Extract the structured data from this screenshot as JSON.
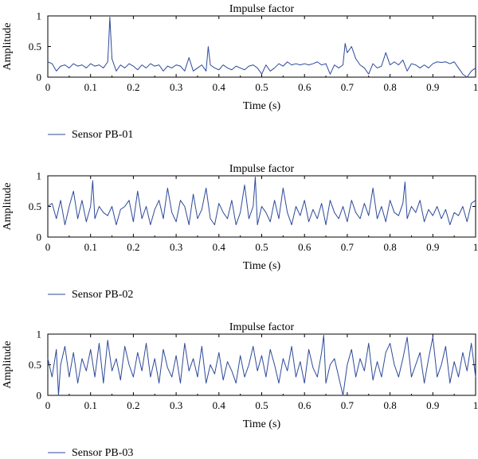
{
  "colors": {
    "line": "#2e4a9a",
    "axis": "#000000",
    "background": "#ffffff"
  },
  "chart_data": [
    {
      "type": "line",
      "title": "Impulse factor",
      "xlabel": "Time (s)",
      "ylabel": "Amplitude",
      "xlim": [
        0,
        1
      ],
      "ylim": [
        0,
        1
      ],
      "xticks": [
        "0",
        "0.1",
        "0.2",
        "0.3",
        "0.4",
        "0.5",
        "0.6",
        "0.7",
        "0.8",
        "0.9",
        "1"
      ],
      "yticks": [
        "0",
        "0.5",
        "1"
      ],
      "grid": false,
      "legend": "bottom-left",
      "series": [
        {
          "name": "Sensor PB-01",
          "x": [
            0,
            0.01,
            0.02,
            0.03,
            0.04,
            0.05,
            0.06,
            0.07,
            0.08,
            0.09,
            0.1,
            0.11,
            0.12,
            0.13,
            0.14,
            0.142,
            0.145,
            0.15,
            0.16,
            0.17,
            0.18,
            0.19,
            0.2,
            0.21,
            0.22,
            0.23,
            0.24,
            0.25,
            0.26,
            0.27,
            0.28,
            0.29,
            0.3,
            0.31,
            0.32,
            0.33,
            0.34,
            0.35,
            0.36,
            0.37,
            0.375,
            0.38,
            0.39,
            0.4,
            0.41,
            0.42,
            0.43,
            0.44,
            0.45,
            0.46,
            0.47,
            0.48,
            0.49,
            0.5,
            0.51,
            0.52,
            0.53,
            0.54,
            0.55,
            0.56,
            0.57,
            0.58,
            0.59,
            0.6,
            0.61,
            0.62,
            0.63,
            0.64,
            0.65,
            0.66,
            0.67,
            0.68,
            0.69,
            0.695,
            0.7,
            0.71,
            0.72,
            0.73,
            0.74,
            0.75,
            0.76,
            0.77,
            0.78,
            0.79,
            0.8,
            0.81,
            0.82,
            0.83,
            0.84,
            0.85,
            0.86,
            0.87,
            0.88,
            0.89,
            0.9,
            0.91,
            0.92,
            0.93,
            0.94,
            0.95,
            0.96,
            0.97,
            0.98,
            0.99,
            1
          ],
          "y": [
            0.25,
            0.22,
            0.1,
            0.18,
            0.2,
            0.15,
            0.22,
            0.18,
            0.2,
            0.15,
            0.22,
            0.18,
            0.2,
            0.15,
            0.25,
            0.5,
            0.98,
            0.3,
            0.1,
            0.2,
            0.15,
            0.22,
            0.18,
            0.12,
            0.2,
            0.15,
            0.22,
            0.18,
            0.2,
            0.1,
            0.18,
            0.15,
            0.2,
            0.18,
            0.1,
            0.32,
            0.1,
            0.15,
            0.2,
            0.1,
            0.5,
            0.2,
            0.15,
            0.12,
            0.2,
            0.15,
            0.12,
            0.18,
            0.15,
            0.12,
            0.18,
            0.2,
            0.15,
            0.05,
            0.2,
            0.1,
            0.15,
            0.22,
            0.18,
            0.25,
            0.2,
            0.22,
            0.2,
            0.22,
            0.2,
            0.22,
            0.25,
            0.2,
            0.22,
            0.05,
            0.2,
            0.15,
            0.2,
            0.55,
            0.4,
            0.5,
            0.3,
            0.2,
            0.15,
            0.05,
            0.22,
            0.15,
            0.18,
            0.4,
            0.2,
            0.25,
            0.2,
            0.28,
            0.1,
            0.22,
            0.2,
            0.15,
            0.2,
            0.15,
            0.22,
            0.25,
            0.24,
            0.25,
            0.22,
            0.25,
            0.15,
            0.05,
            0.0,
            0.1,
            0.15
          ]
        }
      ]
    },
    {
      "type": "line",
      "title": "Impulse factor",
      "xlabel": "Time (s)",
      "ylabel": "Amplitude",
      "xlim": [
        0,
        1
      ],
      "ylim": [
        0,
        1
      ],
      "xticks": [
        "0",
        "0.1",
        "0.2",
        "0.3",
        "0.4",
        "0.5",
        "0.6",
        "0.7",
        "0.8",
        "0.9",
        "1"
      ],
      "yticks": [
        "0",
        "0.5",
        "1"
      ],
      "grid": false,
      "legend": "bottom-left",
      "series": [
        {
          "name": "Sensor PB-02",
          "x": [
            0,
            0.01,
            0.02,
            0.03,
            0.04,
            0.05,
            0.06,
            0.07,
            0.08,
            0.09,
            0.1,
            0.105,
            0.11,
            0.12,
            0.13,
            0.14,
            0.15,
            0.16,
            0.17,
            0.18,
            0.19,
            0.2,
            0.21,
            0.22,
            0.23,
            0.24,
            0.25,
            0.26,
            0.27,
            0.28,
            0.29,
            0.3,
            0.31,
            0.32,
            0.33,
            0.34,
            0.35,
            0.36,
            0.37,
            0.38,
            0.39,
            0.4,
            0.41,
            0.42,
            0.43,
            0.44,
            0.45,
            0.46,
            0.47,
            0.48,
            0.485,
            0.49,
            0.5,
            0.51,
            0.52,
            0.53,
            0.54,
            0.55,
            0.56,
            0.57,
            0.58,
            0.59,
            0.6,
            0.61,
            0.62,
            0.63,
            0.64,
            0.65,
            0.66,
            0.67,
            0.68,
            0.69,
            0.7,
            0.71,
            0.72,
            0.73,
            0.74,
            0.75,
            0.76,
            0.77,
            0.78,
            0.79,
            0.8,
            0.81,
            0.82,
            0.83,
            0.835,
            0.84,
            0.85,
            0.86,
            0.87,
            0.88,
            0.89,
            0.9,
            0.91,
            0.92,
            0.93,
            0.94,
            0.95,
            0.96,
            0.97,
            0.98,
            0.99,
            1
          ],
          "y": [
            0.5,
            0.55,
            0.3,
            0.6,
            0.2,
            0.5,
            0.75,
            0.3,
            0.6,
            0.25,
            0.5,
            0.92,
            0.3,
            0.5,
            0.4,
            0.35,
            0.5,
            0.2,
            0.45,
            0.5,
            0.6,
            0.25,
            0.75,
            0.3,
            0.5,
            0.2,
            0.45,
            0.6,
            0.3,
            0.8,
            0.4,
            0.25,
            0.6,
            0.5,
            0.2,
            0.7,
            0.3,
            0.45,
            0.8,
            0.3,
            0.2,
            0.55,
            0.4,
            0.3,
            0.6,
            0.2,
            0.4,
            0.85,
            0.3,
            0.5,
            0.98,
            0.2,
            0.5,
            0.4,
            0.25,
            0.6,
            0.3,
            0.8,
            0.4,
            0.2,
            0.5,
            0.35,
            0.6,
            0.25,
            0.45,
            0.3,
            0.55,
            0.2,
            0.6,
            0.4,
            0.3,
            0.5,
            0.25,
            0.6,
            0.4,
            0.3,
            0.55,
            0.35,
            0.8,
            0.3,
            0.5,
            0.25,
            0.6,
            0.4,
            0.35,
            0.55,
            0.9,
            0.3,
            0.5,
            0.4,
            0.6,
            0.25,
            0.45,
            0.35,
            0.5,
            0.3,
            0.45,
            0.2,
            0.4,
            0.35,
            0.5,
            0.25,
            0.55,
            0.6
          ]
        }
      ]
    },
    {
      "type": "line",
      "title": "Impulse factor",
      "xlabel": "Time (s)",
      "ylabel": "Amplitude",
      "xlim": [
        0,
        1
      ],
      "ylim": [
        0,
        1
      ],
      "xticks": [
        "0",
        "0.1",
        "0.2",
        "0.3",
        "0.4",
        "0.5",
        "0.6",
        "0.7",
        "0.8",
        "0.9",
        "1"
      ],
      "yticks": [
        "0",
        "0.5",
        "1"
      ],
      "grid": false,
      "legend": "bottom-left",
      "series": [
        {
          "name": "Sensor PB-03",
          "x": [
            0,
            0.01,
            0.02,
            0.025,
            0.03,
            0.04,
            0.05,
            0.06,
            0.07,
            0.08,
            0.09,
            0.1,
            0.11,
            0.12,
            0.13,
            0.14,
            0.15,
            0.16,
            0.17,
            0.18,
            0.19,
            0.2,
            0.21,
            0.22,
            0.23,
            0.24,
            0.25,
            0.26,
            0.27,
            0.28,
            0.29,
            0.3,
            0.31,
            0.32,
            0.33,
            0.34,
            0.35,
            0.36,
            0.37,
            0.38,
            0.39,
            0.4,
            0.41,
            0.42,
            0.43,
            0.44,
            0.45,
            0.46,
            0.47,
            0.48,
            0.49,
            0.5,
            0.51,
            0.52,
            0.53,
            0.54,
            0.55,
            0.56,
            0.57,
            0.58,
            0.59,
            0.6,
            0.61,
            0.62,
            0.63,
            0.64,
            0.645,
            0.65,
            0.66,
            0.67,
            0.68,
            0.69,
            0.7,
            0.71,
            0.72,
            0.73,
            0.74,
            0.75,
            0.76,
            0.77,
            0.78,
            0.79,
            0.8,
            0.81,
            0.82,
            0.83,
            0.84,
            0.85,
            0.86,
            0.87,
            0.88,
            0.89,
            0.9,
            0.91,
            0.92,
            0.93,
            0.94,
            0.95,
            0.96,
            0.97,
            0.98,
            0.99,
            1
          ],
          "y": [
            0.6,
            0.3,
            0.75,
            0.0,
            0.5,
            0.8,
            0.3,
            0.7,
            0.2,
            0.6,
            0.4,
            0.75,
            0.3,
            0.85,
            0.2,
            0.9,
            0.4,
            0.6,
            0.25,
            0.8,
            0.5,
            0.3,
            0.7,
            0.4,
            0.85,
            0.3,
            0.6,
            0.2,
            0.75,
            0.45,
            0.3,
            0.65,
            0.2,
            0.85,
            0.4,
            0.6,
            0.3,
            0.8,
            0.2,
            0.5,
            0.35,
            0.7,
            0.25,
            0.55,
            0.4,
            0.2,
            0.65,
            0.3,
            0.5,
            0.8,
            0.4,
            0.65,
            0.3,
            0.75,
            0.5,
            0.2,
            0.6,
            0.4,
            0.8,
            0.3,
            0.55,
            0.2,
            0.75,
            0.45,
            0.3,
            0.7,
            0.98,
            0.2,
            0.5,
            0.6,
            0.3,
            0.0,
            0.5,
            0.75,
            0.3,
            0.6,
            0.4,
            0.85,
            0.25,
            0.55,
            0.3,
            0.7,
            0.85,
            0.5,
            0.3,
            0.6,
            0.95,
            0.3,
            0.5,
            0.7,
            0.2,
            0.6,
            0.95,
            0.3,
            0.5,
            0.8,
            0.2,
            0.55,
            0.3,
            0.7,
            0.4,
            0.85,
            0.3
          ]
        }
      ]
    }
  ]
}
